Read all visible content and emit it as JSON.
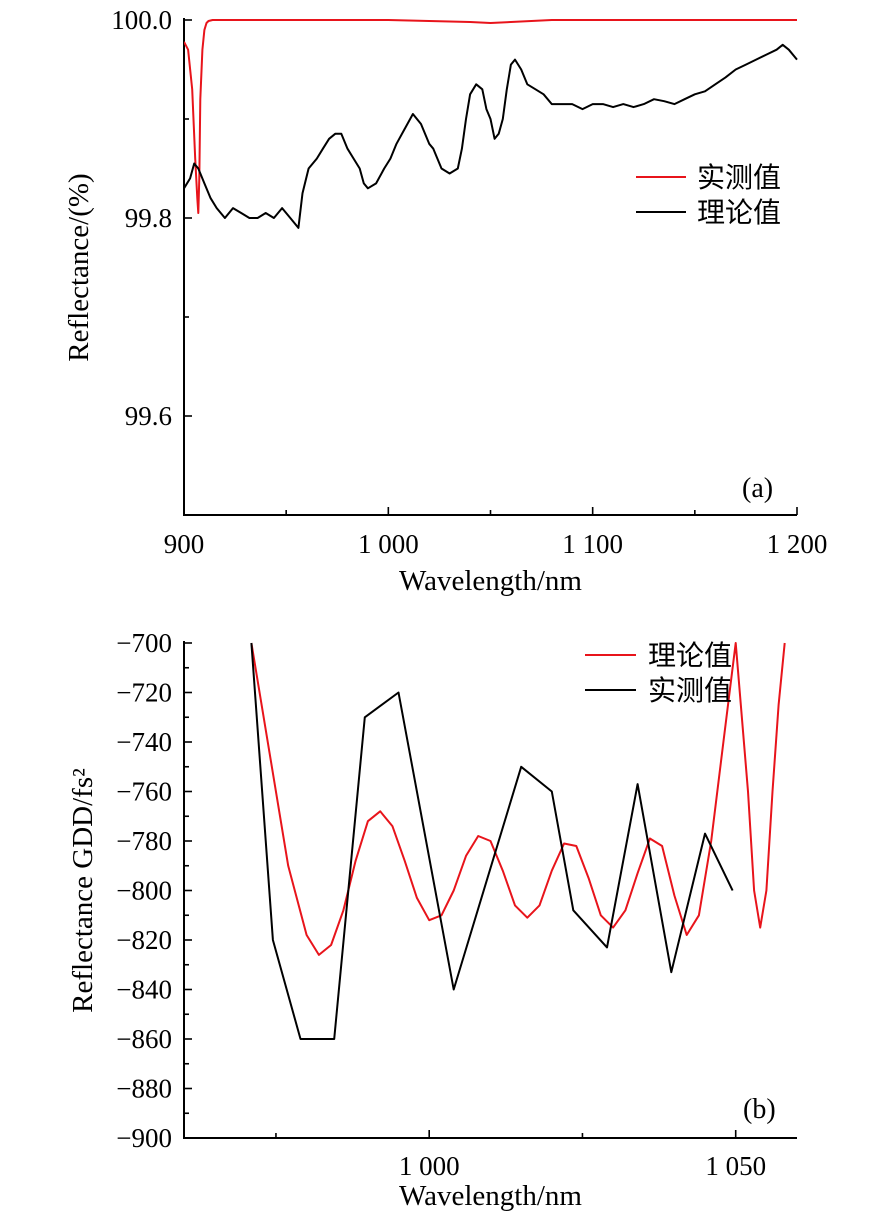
{
  "chart_data": [
    {
      "type": "line",
      "panel_label": "(a)",
      "xlabel": "Wavelength/nm",
      "ylabel": "Reflectance/(%)",
      "xlim": [
        900,
        1200
      ],
      "ylim": [
        99.5,
        100.0
      ],
      "x_ticks": [
        900,
        1000,
        1100,
        1200
      ],
      "x_tick_labels": [
        "900",
        "1 000",
        "1 100",
        "1 200"
      ],
      "x_minor_ticks": [
        950,
        1050,
        1150
      ],
      "y_ticks": [
        99.6,
        99.8,
        100.0
      ],
      "y_tick_labels": [
        "99.6",
        "99.8",
        "100.0"
      ],
      "y_minor_ticks": [
        99.7,
        99.9
      ],
      "legend": "right",
      "grid": false,
      "series": [
        {
          "name": "实测值",
          "color": "#e8141b",
          "x": [
            900,
            902,
            904,
            905.5,
            906.5,
            907,
            907.5,
            908,
            909,
            910,
            911,
            912,
            914,
            920,
            940,
            960,
            980,
            1000,
            1020,
            1040,
            1050,
            1060,
            1080,
            1100,
            1120,
            1150,
            1180,
            1200
          ],
          "y": [
            99.978,
            99.97,
            99.93,
            99.86,
            99.82,
            99.805,
            99.84,
            99.92,
            99.97,
            99.99,
            99.997,
            99.999,
            100.0,
            100.0,
            100.0,
            100.0,
            100.0,
            100.0,
            99.999,
            99.998,
            99.997,
            99.998,
            100.0,
            100.0,
            100.0,
            100.0,
            100.0,
            100.0
          ]
        },
        {
          "name": "理论值",
          "color": "#000000",
          "x": [
            900,
            903,
            905,
            907,
            910,
            913,
            916,
            920,
            924,
            928,
            932,
            936,
            940,
            944,
            948,
            952,
            956,
            958,
            961,
            965,
            968,
            971,
            974,
            977,
            980,
            983,
            986,
            988,
            990,
            994,
            998,
            1001,
            1004,
            1008,
            1012,
            1016,
            1020,
            1022,
            1024,
            1026,
            1030,
            1034,
            1036,
            1038,
            1040,
            1043,
            1046,
            1048,
            1050,
            1052,
            1054,
            1056,
            1058,
            1060,
            1062,
            1065,
            1068,
            1072,
            1076,
            1080,
            1085,
            1090,
            1095,
            1100,
            1105,
            1110,
            1115,
            1120,
            1125,
            1130,
            1135,
            1140,
            1145,
            1150,
            1155,
            1160,
            1165,
            1170,
            1175,
            1180,
            1185,
            1190,
            1193,
            1196,
            1200
          ],
          "y": [
            99.83,
            99.84,
            99.855,
            99.85,
            99.835,
            99.82,
            99.81,
            99.8,
            99.81,
            99.805,
            99.8,
            99.8,
            99.805,
            99.8,
            99.81,
            99.8,
            99.79,
            99.825,
            99.85,
            99.86,
            99.87,
            99.88,
            99.885,
            99.885,
            99.87,
            99.86,
            99.85,
            99.835,
            99.83,
            99.835,
            99.85,
            99.86,
            99.875,
            99.89,
            99.905,
            99.895,
            99.875,
            99.87,
            99.86,
            99.85,
            99.845,
            99.85,
            99.87,
            99.9,
            99.925,
            99.935,
            99.93,
            99.91,
            99.9,
            99.88,
            99.885,
            99.9,
            99.93,
            99.955,
            99.96,
            99.95,
            99.935,
            99.93,
            99.925,
            99.915,
            99.915,
            99.915,
            99.91,
            99.915,
            99.915,
            99.912,
            99.915,
            99.912,
            99.915,
            99.92,
            99.918,
            99.915,
            99.92,
            99.925,
            99.928,
            99.935,
            99.942,
            99.95,
            99.955,
            99.96,
            99.965,
            99.97,
            99.975,
            99.97,
            99.96
          ]
        }
      ]
    },
    {
      "type": "line",
      "panel_label": "(b)",
      "xlabel": "Wavelength/nm",
      "ylabel": "Reflectance GDD/fs²",
      "xlim": [
        960,
        1060
      ],
      "ylim": [
        -900,
        -700
      ],
      "x_ticks": [
        1000,
        1050
      ],
      "x_tick_labels": [
        "1 000",
        "1 050"
      ],
      "x_minor_ticks": [
        975,
        1025
      ],
      "y_ticks": [
        -900,
        -880,
        -860,
        -840,
        -820,
        -800,
        -780,
        -760,
        -740,
        -720,
        -700
      ],
      "y_tick_labels": [
        "−900",
        "−880",
        "−860",
        "−840",
        "−820",
        "−800",
        "−780",
        "−760",
        "−740",
        "−720",
        "−700"
      ],
      "y_minor_ticks": [
        -890,
        -870,
        -850,
        -830,
        -810,
        -790,
        -770,
        -750,
        -730,
        -710
      ],
      "legend": "top-right",
      "grid": false,
      "series": [
        {
          "name": "理论值",
          "color": "#e8141b",
          "x": [
            971,
            974,
            977,
            980,
            982,
            984,
            986,
            988,
            990,
            992,
            994,
            996,
            998,
            1000,
            1002,
            1004,
            1006,
            1008,
            1010,
            1012,
            1014,
            1016,
            1018,
            1020,
            1022,
            1024,
            1026,
            1028,
            1030,
            1032,
            1034,
            1036,
            1038,
            1040,
            1042,
            1044,
            1046,
            1048,
            1050,
            1052,
            1053,
            1054,
            1055,
            1056,
            1057,
            1058
          ],
          "y": [
            -700,
            -745,
            -790,
            -818,
            -826,
            -822,
            -808,
            -788,
            -772,
            -768,
            -774,
            -788,
            -803,
            -812,
            -810,
            -800,
            -786,
            -778,
            -780,
            -792,
            -806,
            -811,
            -806,
            -792,
            -781,
            -782,
            -795,
            -810,
            -815,
            -808,
            -793,
            -779,
            -782,
            -802,
            -818,
            -810,
            -780,
            -740,
            -700,
            -760,
            -800,
            -815,
            -800,
            -760,
            -725,
            -700
          ]
        },
        {
          "name": "实测值",
          "color": "#000000",
          "x": [
            971,
            974.5,
            979,
            984.5,
            989.5,
            995,
            1004,
            1015,
            1020,
            1023.5,
            1029,
            1034,
            1039.5,
            1045,
            1049.5
          ],
          "y": [
            -700,
            -820,
            -860,
            -860,
            -730,
            -720,
            -840,
            -750,
            -760,
            -808,
            -823,
            -757,
            -833,
            -777,
            -800
          ]
        }
      ]
    }
  ]
}
